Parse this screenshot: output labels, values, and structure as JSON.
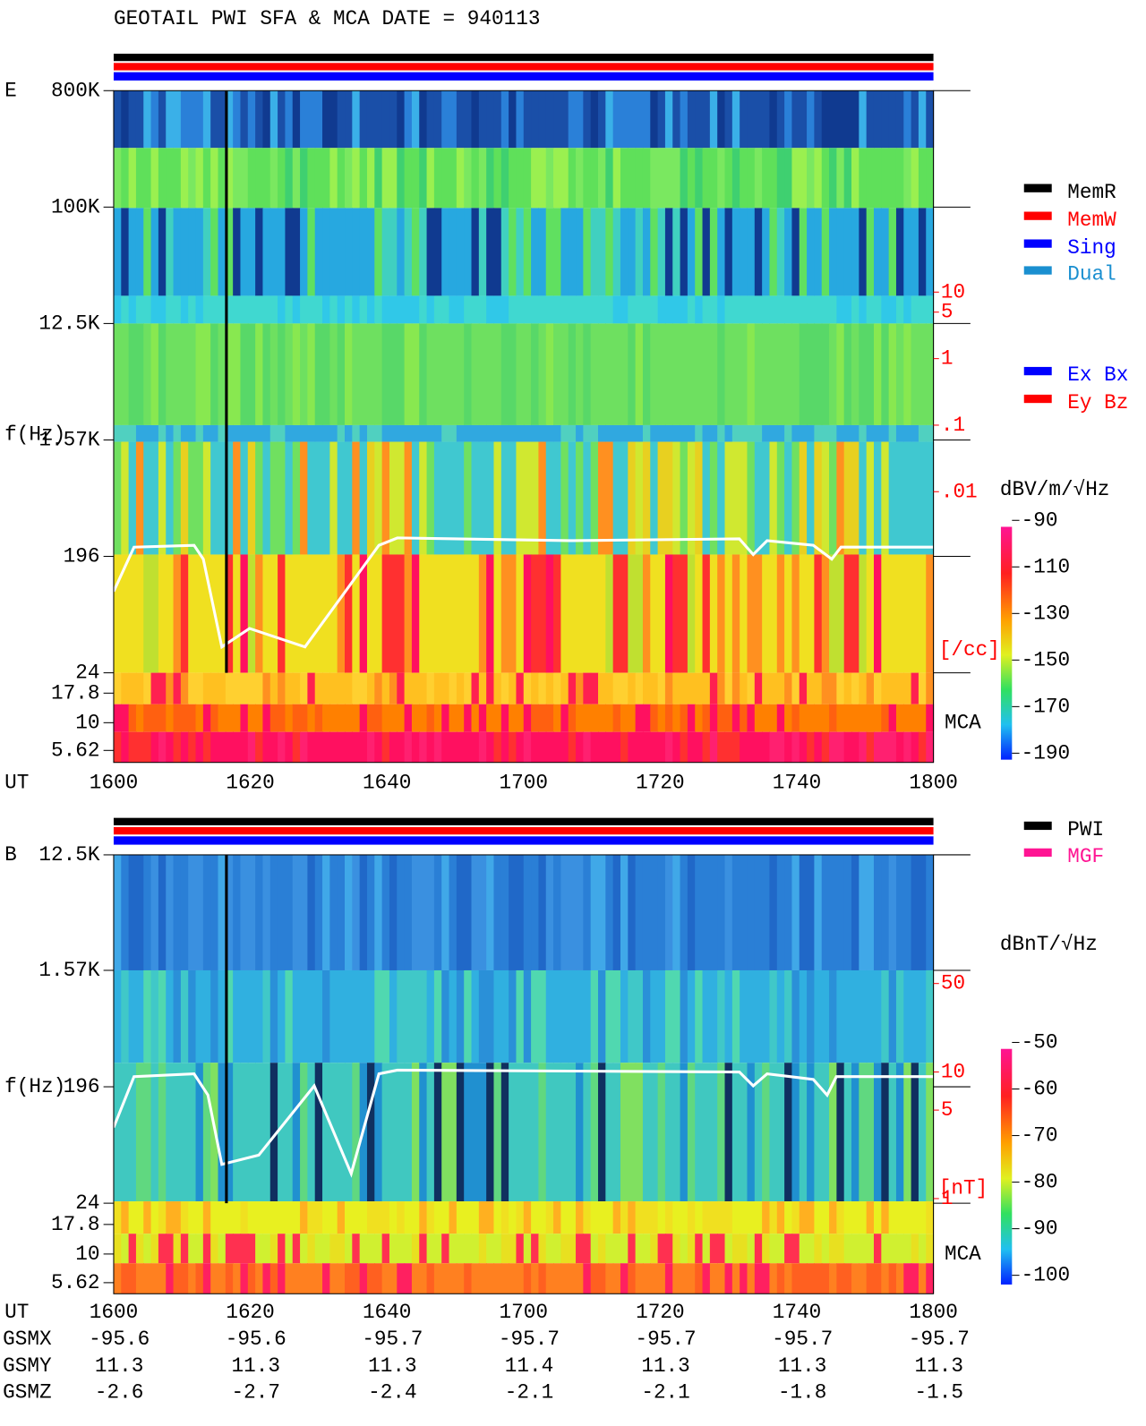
{
  "title": "GEOTAIL  PWI SFA & MCA   DATE = 940113",
  "panels": [
    {
      "label": "E",
      "y_label": "f(Hz)",
      "freq_ticks": [
        "800K",
        "100K",
        "12.5K",
        "1.57K",
        "196",
        "24",
        "17.8",
        "10",
        "5.62"
      ],
      "time_label": "UT",
      "time_ticks": [
        "1600",
        "1620",
        "1640",
        "1700",
        "1720",
        "1740",
        "1800"
      ],
      "density_ticks": [
        10,
        5,
        1,
        {
          "value": 0.1,
          "label": ".1"
        },
        {
          "value": 0.01,
          "label": ".01"
        }
      ],
      "density_unit": "[/cc]",
      "mca_label": "MCA",
      "legend": [
        {
          "name": "MemR",
          "color": "#000000"
        },
        {
          "name": "MemW",
          "color": "#ff0000"
        },
        {
          "name": "Sing",
          "color": "#0000ff"
        },
        {
          "name": "Dual",
          "color": "#1a8fd0"
        }
      ],
      "legend2": [
        {
          "name": "Ex Bx",
          "color": "#0000ff"
        },
        {
          "name": "Ey Bz",
          "color": "#ff0000"
        }
      ],
      "colorbar": {
        "unit": "dBV/m/√Hz",
        "ticks": [
          -90,
          -110,
          -130,
          -150,
          -170,
          -190
        ]
      }
    },
    {
      "label": "B",
      "y_label": "f(Hz)",
      "freq_ticks": [
        "12.5K",
        "1.57K",
        "196",
        "24",
        "17.8",
        "10",
        "5.62"
      ],
      "time_label": "UT",
      "time_ticks": [
        "1600",
        "1620",
        "1640",
        "1700",
        "1720",
        "1740",
        "1800"
      ],
      "density_ticks": [
        50,
        10,
        5,
        1
      ],
      "density_unit": "[nT]",
      "mca_label": "MCA",
      "legend": [
        {
          "name": "PWI",
          "color": "#000000"
        },
        {
          "name": "MGF",
          "color": "#ff1493"
        }
      ],
      "colorbar": {
        "unit": "dBnT/√Hz",
        "ticks": [
          -50,
          -60,
          -70,
          -80,
          -90,
          -100
        ]
      }
    }
  ],
  "orbit": [
    {
      "label": "GSMX",
      "values": [
        -95.6,
        -95.6,
        -95.7,
        -95.7,
        -95.7,
        -95.7,
        -95.7
      ]
    },
    {
      "label": "GSMY",
      "values": [
        11.3,
        11.3,
        11.3,
        11.4,
        11.3,
        11.3,
        11.3
      ]
    },
    {
      "label": "GSMZ",
      "values": [
        -2.6,
        -2.7,
        -2.4,
        -2.1,
        -2.1,
        -1.8,
        -1.5
      ]
    }
  ]
}
